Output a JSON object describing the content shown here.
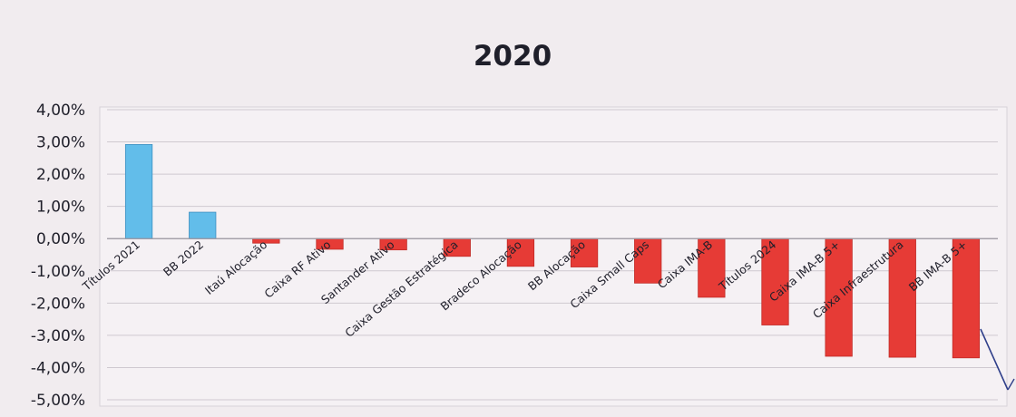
{
  "chart_data": {
    "type": "bar",
    "title": "2020",
    "xlabel": "",
    "ylabel": "",
    "ylim": [
      -5,
      4
    ],
    "y_ticks": [
      {
        "value": 4,
        "label": "4,00%"
      },
      {
        "value": 3,
        "label": "3,00%"
      },
      {
        "value": 2,
        "label": "2,00%"
      },
      {
        "value": 1,
        "label": "1,00%"
      },
      {
        "value": 0,
        "label": "0,00%"
      },
      {
        "value": -1,
        "label": "-1,00%"
      },
      {
        "value": -2,
        "label": "-2,00%"
      },
      {
        "value": -3,
        "label": "-3,00%"
      },
      {
        "value": -4,
        "label": "-4,00%"
      },
      {
        "value": -5,
        "label": "-5,00%"
      }
    ],
    "categories": [
      "Títulos 2021",
      "BB 2022",
      "Itaú Alocação",
      "Caixa RF Ativo",
      "Santander Ativo",
      "Caixa Gestão Estratégica",
      "Bradeco Alocação",
      "BB Alocação",
      "Caixa Small Caps",
      "Caixa IMA-B",
      "Títulos 2024",
      "Caixa IMA-B 5+",
      "Caixa Infraestrutura",
      "BB IMA-B 5+"
    ],
    "values": [
      2.92,
      0.82,
      -0.14,
      -0.33,
      -0.35,
      -0.55,
      -0.86,
      -0.88,
      -1.38,
      -1.82,
      -2.68,
      -3.65,
      -3.68,
      -3.7
    ],
    "grid": true,
    "colors": {
      "positive": "#62bdea",
      "negative": "#e63b36",
      "background": "#f1ecef",
      "plot_background": "#f5f1f4",
      "grid": "#cfc9d0",
      "text": "#1f1f2a"
    }
  }
}
